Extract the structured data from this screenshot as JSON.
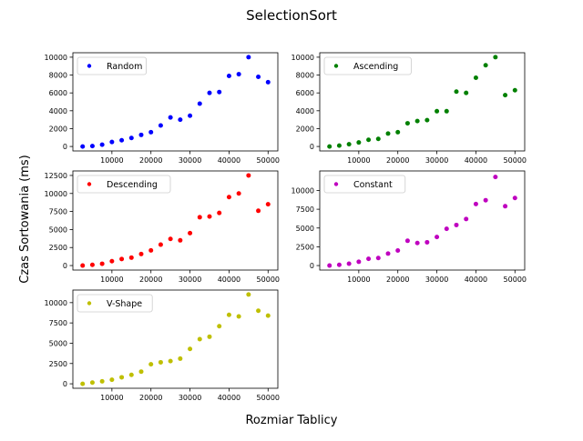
{
  "figure": {
    "title": "SelectionSort",
    "xlabel": "Rozmiar Tablicy",
    "ylabel": "Czas Sortowania (ms)"
  },
  "chart_data": [
    {
      "type": "scatter",
      "name": "Random",
      "color": "#0000ff",
      "legend": "top-left",
      "grid": false,
      "xlim": [
        0,
        52500
      ],
      "ylim": [
        -500,
        10500
      ],
      "xticks": [
        10000,
        20000,
        30000,
        40000,
        50000
      ],
      "yticks": [
        0,
        2000,
        4000,
        6000,
        8000,
        10000
      ],
      "x": [
        2500,
        5000,
        7500,
        10000,
        12500,
        15000,
        17500,
        20000,
        22500,
        25000,
        27500,
        30000,
        32500,
        35000,
        37500,
        40000,
        42500,
        45000,
        47500,
        50000
      ],
      "y": [
        0,
        50,
        200,
        500,
        700,
        950,
        1300,
        1600,
        2350,
        3250,
        3000,
        3450,
        4800,
        6000,
        6100,
        7900,
        8100,
        10000,
        7800,
        7200
      ]
    },
    {
      "type": "scatter",
      "name": "Ascending",
      "color": "#008000",
      "legend": "top-left",
      "grid": false,
      "xlim": [
        0,
        52500
      ],
      "ylim": [
        -500,
        10500
      ],
      "xticks": [
        10000,
        20000,
        30000,
        40000,
        50000
      ],
      "yticks": [
        0,
        2000,
        4000,
        6000,
        8000,
        10000
      ],
      "x": [
        2500,
        5000,
        7500,
        10000,
        12500,
        15000,
        17500,
        20000,
        22500,
        25000,
        27500,
        30000,
        32500,
        35000,
        37500,
        40000,
        42500,
        45000,
        47500,
        50000
      ],
      "y": [
        0,
        100,
        250,
        450,
        750,
        850,
        1450,
        1600,
        2600,
        2850,
        2950,
        3950,
        3950,
        6150,
        6000,
        7700,
        9100,
        10000,
        5750,
        6300
      ]
    },
    {
      "type": "scatter",
      "name": "Descending",
      "color": "#ff0000",
      "legend": "top-left",
      "grid": false,
      "xlim": [
        0,
        52500
      ],
      "ylim": [
        -625,
        13125
      ],
      "xticks": [
        10000,
        20000,
        30000,
        40000,
        50000
      ],
      "yticks": [
        0,
        2500,
        5000,
        7500,
        10000,
        12500
      ],
      "x": [
        2500,
        5000,
        7500,
        10000,
        12500,
        15000,
        17500,
        20000,
        22500,
        25000,
        27500,
        30000,
        32500,
        35000,
        37500,
        40000,
        42500,
        45000,
        47500,
        50000
      ],
      "y": [
        0,
        100,
        250,
        600,
        900,
        1100,
        1600,
        2100,
        2900,
        3700,
        3500,
        4500,
        6700,
        6800,
        7300,
        9500,
        10000,
        12500,
        7600,
        8500
      ]
    },
    {
      "type": "scatter",
      "name": "Constant",
      "color": "#bf00bf",
      "legend": "top-left",
      "grid": false,
      "xlim": [
        0,
        52500
      ],
      "ylim": [
        -600,
        12600
      ],
      "xticks": [
        10000,
        20000,
        30000,
        40000,
        50000
      ],
      "yticks": [
        0,
        2500,
        5000,
        7500,
        10000
      ],
      "x": [
        2500,
        5000,
        7500,
        10000,
        12500,
        15000,
        17500,
        20000,
        22500,
        25000,
        27500,
        30000,
        32500,
        35000,
        37500,
        40000,
        42500,
        45000,
        47500,
        50000
      ],
      "y": [
        0,
        100,
        250,
        500,
        900,
        1000,
        1600,
        2000,
        3300,
        3000,
        3100,
        3800,
        4900,
        5400,
        6200,
        8200,
        8700,
        11800,
        7900,
        9000
      ]
    },
    {
      "type": "scatter",
      "name": "V-Shape",
      "color": "#bfbf00",
      "legend": "top-left",
      "grid": false,
      "xlim": [
        0,
        52500
      ],
      "ylim": [
        -550,
        11550
      ],
      "xticks": [
        10000,
        20000,
        30000,
        40000,
        50000
      ],
      "yticks": [
        0,
        2500,
        5000,
        7500,
        10000
      ],
      "x": [
        2500,
        5000,
        7500,
        10000,
        12500,
        15000,
        17500,
        20000,
        22500,
        25000,
        27500,
        30000,
        32500,
        35000,
        37500,
        40000,
        42500,
        45000,
        47500,
        50000
      ],
      "y": [
        0,
        150,
        300,
        500,
        800,
        1100,
        1500,
        2400,
        2650,
        2800,
        3100,
        4300,
        5500,
        5800,
        7100,
        8500,
        8300,
        11000,
        9000,
        8400
      ]
    }
  ]
}
